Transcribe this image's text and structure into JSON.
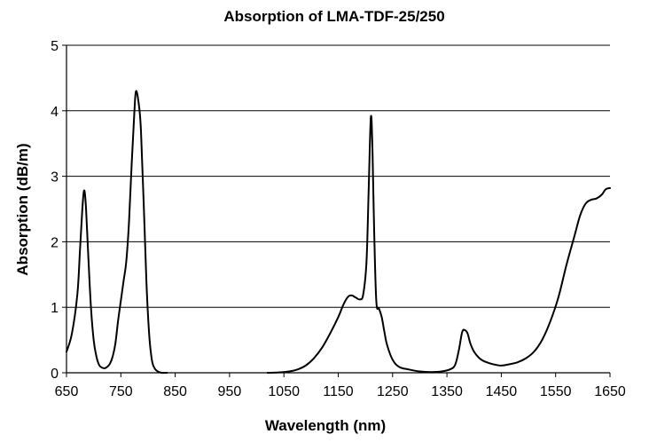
{
  "chart_data": {
    "type": "line",
    "title": "Absorption of LMA-TDF-25/250",
    "xlabel": "Wavelength (nm)",
    "ylabel": "Absorption (dB/m)",
    "xlim": [
      650,
      1650
    ],
    "ylim": [
      0,
      5
    ],
    "x_ticks": [
      650,
      750,
      850,
      950,
      1050,
      1150,
      1250,
      1350,
      1450,
      1550,
      1650
    ],
    "y_ticks": [
      0,
      1,
      2,
      3,
      4,
      5
    ],
    "grid": "horizontal",
    "legend": "none",
    "line_color": "#000000",
    "series": [
      {
        "segments": [
          [
            [
              650,
              0.32
            ],
            [
              660,
              0.6
            ],
            [
              670,
              1.2
            ],
            [
              675,
              1.9
            ],
            [
              680,
              2.6
            ],
            [
              683,
              2.78
            ],
            [
              686,
              2.5
            ],
            [
              690,
              1.8
            ],
            [
              695,
              1.0
            ],
            [
              700,
              0.5
            ],
            [
              705,
              0.25
            ],
            [
              710,
              0.12
            ],
            [
              715,
              0.08
            ],
            [
              720,
              0.07
            ],
            [
              725,
              0.09
            ],
            [
              730,
              0.14
            ],
            [
              735,
              0.25
            ],
            [
              740,
              0.45
            ],
            [
              745,
              0.8
            ],
            [
              750,
              1.1
            ],
            [
              755,
              1.4
            ],
            [
              760,
              1.7
            ],
            [
              765,
              2.3
            ],
            [
              770,
              3.2
            ],
            [
              775,
              4.0
            ],
            [
              778,
              4.3
            ],
            [
              783,
              4.1
            ],
            [
              787,
              3.7
            ],
            [
              792,
              2.6
            ],
            [
              797,
              1.4
            ],
            [
              802,
              0.6
            ],
            [
              807,
              0.2
            ],
            [
              812,
              0.07
            ],
            [
              818,
              0.02
            ],
            [
              825,
              0.0
            ],
            [
              835,
              0.0
            ]
          ],
          [
            [
              1020,
              0.0
            ],
            [
              1040,
              0.005
            ],
            [
              1060,
              0.02
            ],
            [
              1075,
              0.05
            ],
            [
              1090,
              0.11
            ],
            [
              1105,
              0.22
            ],
            [
              1120,
              0.38
            ],
            [
              1135,
              0.6
            ],
            [
              1150,
              0.85
            ],
            [
              1160,
              1.05
            ],
            [
              1168,
              1.16
            ],
            [
              1175,
              1.18
            ],
            [
              1182,
              1.15
            ],
            [
              1190,
              1.12
            ],
            [
              1196,
              1.2
            ],
            [
              1202,
              1.7
            ],
            [
              1206,
              2.8
            ],
            [
              1210,
              3.9
            ],
            [
              1213,
              3.4
            ],
            [
              1216,
              2.2
            ],
            [
              1220,
              1.1
            ],
            [
              1225,
              0.98
            ],
            [
              1230,
              0.85
            ],
            [
              1235,
              0.62
            ],
            [
              1240,
              0.42
            ],
            [
              1250,
              0.2
            ],
            [
              1262,
              0.09
            ],
            [
              1280,
              0.05
            ],
            [
              1300,
              0.02
            ],
            [
              1320,
              0.01
            ],
            [
              1340,
              0.02
            ],
            [
              1355,
              0.05
            ],
            [
              1365,
              0.12
            ],
            [
              1372,
              0.35
            ],
            [
              1378,
              0.62
            ],
            [
              1383,
              0.65
            ],
            [
              1388,
              0.6
            ],
            [
              1393,
              0.45
            ],
            [
              1400,
              0.32
            ],
            [
              1410,
              0.22
            ],
            [
              1420,
              0.17
            ],
            [
              1435,
              0.13
            ],
            [
              1450,
              0.11
            ],
            [
              1465,
              0.13
            ],
            [
              1480,
              0.16
            ],
            [
              1495,
              0.22
            ],
            [
              1510,
              0.32
            ],
            [
              1525,
              0.5
            ],
            [
              1540,
              0.78
            ],
            [
              1555,
              1.15
            ],
            [
              1570,
              1.65
            ],
            [
              1585,
              2.1
            ],
            [
              1595,
              2.4
            ],
            [
              1605,
              2.58
            ],
            [
              1615,
              2.64
            ],
            [
              1625,
              2.66
            ],
            [
              1635,
              2.72
            ],
            [
              1642,
              2.8
            ],
            [
              1650,
              2.82
            ]
          ]
        ]
      }
    ]
  }
}
